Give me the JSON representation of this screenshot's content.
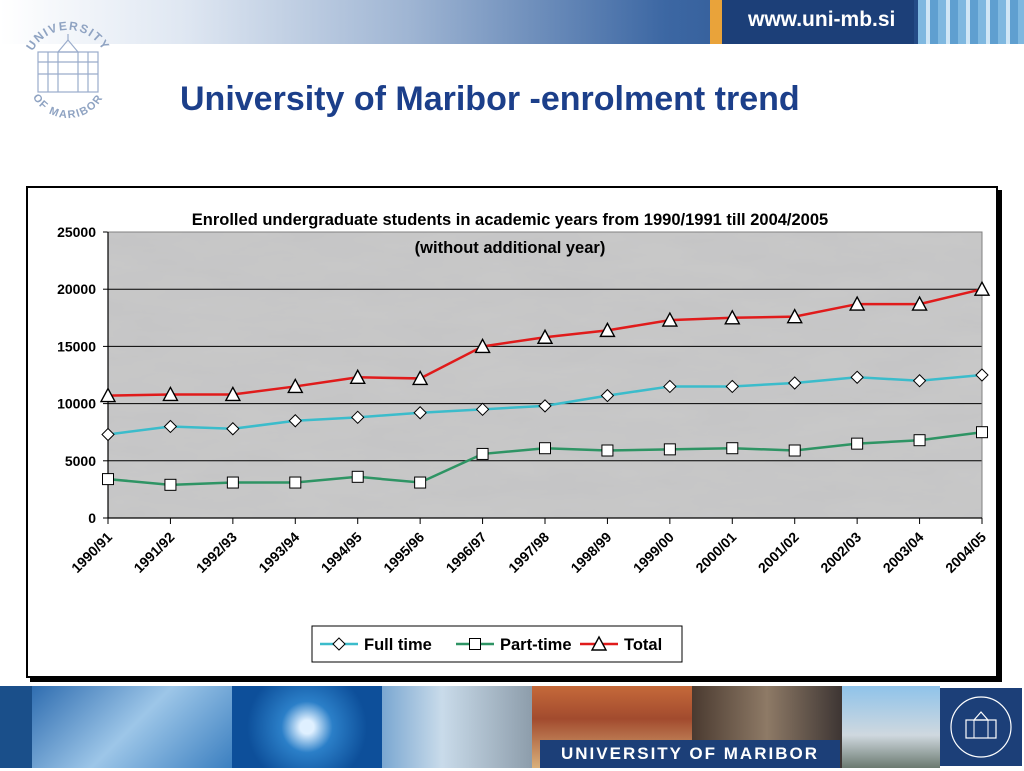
{
  "header": {
    "url": "www.uni-mb.si",
    "logo_text_top": "UNIVERSITY",
    "logo_text_bottom": "OF MARIBOR"
  },
  "page": {
    "title": "University of Maribor -enrolment trend"
  },
  "footer": {
    "university_name": "UNIVERSITY OF MARIBOR"
  },
  "colors": {
    "title": "#1c3f8a",
    "full_time": "#3bbccb",
    "part_time": "#2e9464",
    "total": "#e01b1b",
    "brand_blue": "#1c3f78",
    "accent_orange": "#e9a33a"
  },
  "chart_data": {
    "type": "line",
    "title": "Enrolled undergraduate students in academic years from 1990/1991 till 2004/2005",
    "subtitle": "(without additional year)",
    "xlabel": "",
    "ylabel": "",
    "categories": [
      "1990/91",
      "1991/92",
      "1992/93",
      "1993/94",
      "1994/95",
      "1995/96",
      "1996/97",
      "1997/98",
      "1998/99",
      "1999/00",
      "2000/01",
      "2001/02",
      "2002/03",
      "2003/04",
      "2004/05"
    ],
    "ylim": [
      0,
      25000
    ],
    "yticks": [
      0,
      5000,
      10000,
      15000,
      20000,
      25000
    ],
    "grid": true,
    "legend_position": "bottom",
    "series": [
      {
        "name": "Full time",
        "marker": "diamond",
        "color": "#3bbccb",
        "values": [
          7300,
          8000,
          7800,
          8500,
          8800,
          9200,
          9500,
          9800,
          10700,
          11500,
          11500,
          11800,
          12300,
          12000,
          12500
        ]
      },
      {
        "name": "Part-time",
        "marker": "square",
        "color": "#2e9464",
        "values": [
          3400,
          2900,
          3100,
          3100,
          3600,
          3100,
          5600,
          6100,
          5900,
          6000,
          6100,
          5900,
          6500,
          6800,
          7500
        ]
      },
      {
        "name": "Total",
        "marker": "triangle",
        "color": "#e01b1b",
        "values": [
          10700,
          10800,
          10800,
          11500,
          12300,
          12200,
          15000,
          15800,
          16400,
          17300,
          17500,
          17600,
          18700,
          18700,
          20000
        ]
      }
    ]
  }
}
